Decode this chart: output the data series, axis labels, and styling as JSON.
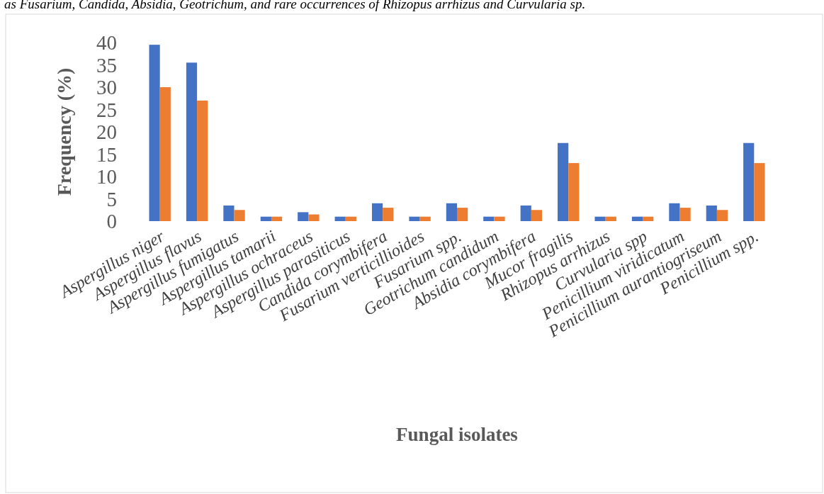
{
  "chart_data": {
    "type": "bar",
    "xlabel": "Fungal isolates",
    "ylabel": "Frequency (%)",
    "annotations": [
      "as Fusarium, Candida, Absidia, Geotrichum, and rare occurrences of Rhizopus arrhizus and Curvularia sp."
    ],
    "categories": [
      "Aspergillus niger",
      "Aspergillus flavus",
      "Aspergillus fumigatus",
      "Aspergillus tamarii",
      "Aspergillus ochraceus",
      "Aspergillus parasiticus",
      "Candida corymbifera",
      "Fusarium verticillioides",
      "Fusarium spp.",
      "Geotrichum candidum",
      "Absidia corymbifera",
      "Mucor fragilis",
      "Rhizopus arrhizus",
      "Curvularia spp",
      "Penicillium viridicatum",
      "Penicillium aurantiogriseum",
      "Penicillium spp."
    ],
    "series": [
      {
        "color": "#4472c4",
        "values": [
          39.5,
          35.5,
          3.5,
          1,
          2,
          1,
          4,
          1,
          4,
          1,
          3.5,
          17.5,
          1,
          1,
          4,
          3.5,
          17.5
        ]
      },
      {
        "color": "#ed7d31",
        "values": [
          30,
          27,
          2.5,
          1,
          1.5,
          1,
          3,
          1,
          3,
          1,
          2.5,
          13,
          1,
          1,
          3,
          2.5,
          13
        ]
      }
    ],
    "ylim": [
      0,
      40
    ],
    "yticks": [
      0,
      5,
      10,
      15,
      20,
      25,
      30,
      35,
      40
    ],
    "grid": false
  }
}
